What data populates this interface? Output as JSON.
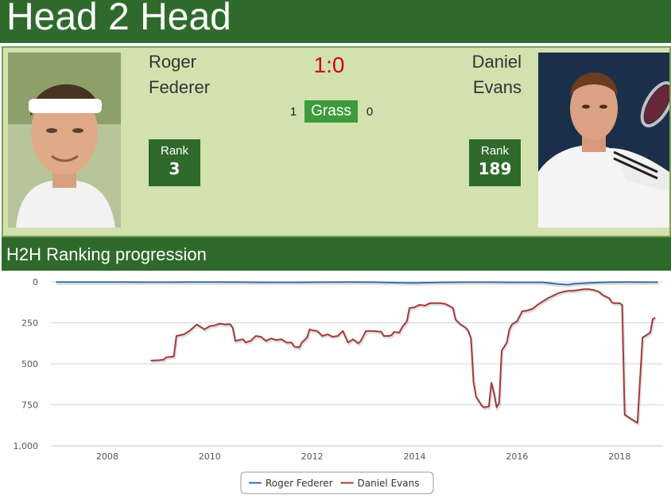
{
  "header": {
    "title": "Head 2 Head"
  },
  "players": [
    {
      "first_name": "Roger",
      "last_name": "Federer",
      "wins": "1",
      "rank_label": "Rank",
      "rank": "3",
      "photo_icon": "player-photo-federer"
    },
    {
      "first_name": "Daniel",
      "last_name": "Evans",
      "wins": "0",
      "rank_label": "Rank",
      "rank": "189",
      "photo_icon": "player-photo-evans"
    }
  ],
  "score": "1:0",
  "surface": "Grass",
  "colors": {
    "header_green": "#2f6a2c",
    "panel_bg": "#d3e1af",
    "surface_green": "#3e9a3a",
    "score_red": "#d0021b",
    "federer_line": "#3a6ea5",
    "evans_line": "#a33a3a"
  },
  "section": {
    "title": "H2H Ranking progression"
  },
  "chart_data": {
    "type": "line",
    "title": "",
    "xlabel": "",
    "ylabel": "",
    "xlim": [
      2006.9,
      2018.85
    ],
    "ylim": [
      0,
      1000
    ],
    "y_reversed": true,
    "grid": true,
    "x_ticks": [
      2008,
      2010,
      2012,
      2014,
      2016,
      2018
    ],
    "x_tick_labels": [
      "2008",
      "2010",
      "2012",
      "2014",
      "2016",
      "2018"
    ],
    "y_ticks": [
      0,
      250,
      500,
      750,
      1000
    ],
    "y_tick_labels": [
      "0",
      "250",
      "500",
      "750",
      "1,000"
    ],
    "legend": {
      "position": "bottom-center"
    },
    "series": [
      {
        "name": "Roger Federer",
        "color": "#3a6ea5",
        "points": [
          [
            2007.0,
            1
          ],
          [
            2008.3,
            1
          ],
          [
            2008.7,
            2
          ],
          [
            2009.3,
            2
          ],
          [
            2009.6,
            1
          ],
          [
            2010.2,
            1
          ],
          [
            2010.6,
            2
          ],
          [
            2011.2,
            3
          ],
          [
            2011.6,
            3
          ],
          [
            2012.3,
            2
          ],
          [
            2012.7,
            1
          ],
          [
            2013.2,
            2
          ],
          [
            2013.6,
            5
          ],
          [
            2014.0,
            7
          ],
          [
            2014.5,
            3
          ],
          [
            2015.0,
            2
          ],
          [
            2015.5,
            2
          ],
          [
            2016.0,
            3
          ],
          [
            2016.5,
            3
          ],
          [
            2016.8,
            13
          ],
          [
            2017.0,
            17
          ],
          [
            2017.1,
            12
          ],
          [
            2017.5,
            5
          ],
          [
            2017.8,
            2
          ],
          [
            2018.2,
            1
          ],
          [
            2018.5,
            2
          ],
          [
            2018.75,
            2
          ]
        ]
      },
      {
        "name": "Daniel Evans",
        "color": "#a33a3a",
        "points": [
          [
            2008.85,
            480
          ],
          [
            2009.0,
            478
          ],
          [
            2009.1,
            475
          ],
          [
            2009.15,
            460
          ],
          [
            2009.3,
            455
          ],
          [
            2009.35,
            330
          ],
          [
            2009.5,
            320
          ],
          [
            2009.6,
            300
          ],
          [
            2009.75,
            260
          ],
          [
            2009.8,
            270
          ],
          [
            2009.9,
            290
          ],
          [
            2010.0,
            270
          ],
          [
            2010.1,
            265
          ],
          [
            2010.2,
            255
          ],
          [
            2010.3,
            260
          ],
          [
            2010.4,
            258
          ],
          [
            2010.45,
            280
          ],
          [
            2010.5,
            360
          ],
          [
            2010.65,
            350
          ],
          [
            2010.7,
            370
          ],
          [
            2010.8,
            360
          ],
          [
            2010.9,
            330
          ],
          [
            2011.0,
            335
          ],
          [
            2011.1,
            360
          ],
          [
            2011.2,
            345
          ],
          [
            2011.3,
            355
          ],
          [
            2011.4,
            350
          ],
          [
            2011.5,
            370
          ],
          [
            2011.6,
            370
          ],
          [
            2011.65,
            395
          ],
          [
            2011.75,
            400
          ],
          [
            2011.8,
            370
          ],
          [
            2011.9,
            340
          ],
          [
            2011.95,
            290
          ],
          [
            2012.0,
            295
          ],
          [
            2012.1,
            300
          ],
          [
            2012.2,
            330
          ],
          [
            2012.3,
            320
          ],
          [
            2012.4,
            335
          ],
          [
            2012.5,
            330
          ],
          [
            2012.6,
            300
          ],
          [
            2012.7,
            370
          ],
          [
            2012.8,
            350
          ],
          [
            2012.9,
            375
          ],
          [
            2012.95,
            360
          ],
          [
            2013.05,
            300
          ],
          [
            2013.2,
            300
          ],
          [
            2013.35,
            305
          ],
          [
            2013.4,
            330
          ],
          [
            2013.5,
            330
          ],
          [
            2013.55,
            325
          ],
          [
            2013.6,
            305
          ],
          [
            2013.7,
            310
          ],
          [
            2013.75,
            280
          ],
          [
            2013.85,
            240
          ],
          [
            2013.9,
            160
          ],
          [
            2014.0,
            155
          ],
          [
            2014.1,
            140
          ],
          [
            2014.2,
            145
          ],
          [
            2014.3,
            130
          ],
          [
            2014.5,
            130
          ],
          [
            2014.6,
            135
          ],
          [
            2014.7,
            150
          ],
          [
            2014.75,
            160
          ],
          [
            2014.8,
            230
          ],
          [
            2014.9,
            260
          ],
          [
            2015.0,
            280
          ],
          [
            2015.05,
            300
          ],
          [
            2015.1,
            345
          ],
          [
            2015.15,
            610
          ],
          [
            2015.2,
            700
          ],
          [
            2015.3,
            750
          ],
          [
            2015.35,
            765
          ],
          [
            2015.45,
            760
          ],
          [
            2015.5,
            615
          ],
          [
            2015.55,
            680
          ],
          [
            2015.6,
            765
          ],
          [
            2015.65,
            740
          ],
          [
            2015.7,
            420
          ],
          [
            2015.8,
            370
          ],
          [
            2015.85,
            290
          ],
          [
            2015.9,
            260
          ],
          [
            2015.95,
            250
          ],
          [
            2016.0,
            240
          ],
          [
            2016.1,
            180
          ],
          [
            2016.2,
            175
          ],
          [
            2016.3,
            165
          ],
          [
            2016.4,
            140
          ],
          [
            2016.5,
            120
          ],
          [
            2016.6,
            100
          ],
          [
            2016.7,
            85
          ],
          [
            2016.8,
            70
          ],
          [
            2016.9,
            60
          ],
          [
            2017.0,
            55
          ],
          [
            2017.1,
            55
          ],
          [
            2017.2,
            50
          ],
          [
            2017.3,
            45
          ],
          [
            2017.4,
            45
          ],
          [
            2017.5,
            50
          ],
          [
            2017.6,
            60
          ],
          [
            2017.65,
            75
          ],
          [
            2017.7,
            85
          ],
          [
            2017.8,
            100
          ],
          [
            2017.85,
            125
          ],
          [
            2017.9,
            130
          ],
          [
            2018.0,
            130
          ],
          [
            2018.05,
            140
          ],
          [
            2018.1,
            810
          ],
          [
            2018.2,
            830
          ],
          [
            2018.3,
            850
          ],
          [
            2018.35,
            860
          ],
          [
            2018.45,
            340
          ],
          [
            2018.5,
            330
          ],
          [
            2018.6,
            310
          ],
          [
            2018.65,
            225
          ],
          [
            2018.7,
            220
          ]
        ]
      }
    ]
  }
}
